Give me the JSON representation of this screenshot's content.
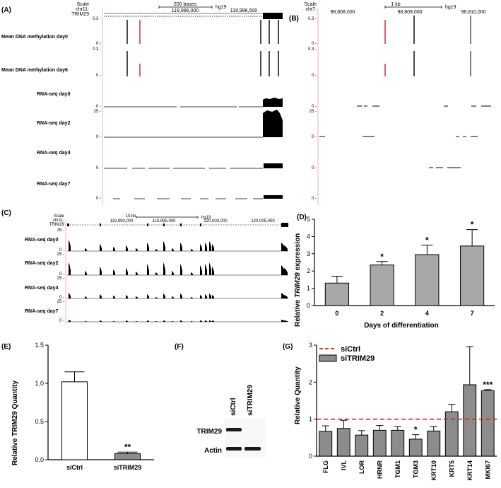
{
  "panels": {
    "A": {
      "label": "(A)",
      "scale_label": "Scale",
      "scale_bar": "200 bases",
      "assembly": "hg19",
      "chrom": "chr11:",
      "gene": "TRIM29",
      "coords": [
        "119,996,000",
        "119,996,500"
      ],
      "tracks": [
        "Mean DNA methylation day0",
        "Mean DNA methylation day6",
        "RNA-seq day0",
        "RNA-seq day2",
        "RNA-seq day4",
        "RNA-seq day7"
      ],
      "ticks_meth": [
        "0.3 -",
        "0 -"
      ],
      "ticks_rna": [
        "25 -",
        "0 -"
      ]
    },
    "B": {
      "label": "(B)",
      "scale_label": "Scale",
      "scale_bar": "1 kb",
      "assembly": "hg19",
      "chrom": "chr7:",
      "coords": [
        "98,808,000",
        "98,809,000",
        "98,810,000"
      ],
      "ticks_meth": [
        "0.3 -",
        "0 -"
      ],
      "ticks_rna": [
        "25 -",
        "0 -"
      ]
    },
    "C": {
      "label": "(C)",
      "scale_label": "Scale",
      "chrom": "chr11:",
      "gene": "TRIM29",
      "scale_bar": "10 kb",
      "assembly": "hg19",
      "coords": [
        "119,990,000",
        "119,995,000",
        "120,000,000",
        "120,005,000"
      ],
      "tracks": [
        "RNA-seq day0",
        "RNA-seq day2",
        "RNA-seq day4",
        "RNA-seq day7"
      ],
      "ticks": [
        "25 -",
        "0 -"
      ]
    },
    "D": {
      "label": "(D)"
    },
    "E": {
      "label": "(E)"
    },
    "F": {
      "label": "(F)",
      "lanes": [
        "siCtrl",
        "siTRIM29"
      ],
      "rows": [
        "TRIM29",
        "Actin"
      ]
    },
    "G": {
      "label": "(G)"
    }
  },
  "chart_data": [
    {
      "id": "D",
      "type": "bar",
      "categories": [
        "0",
        "2",
        "4",
        "7"
      ],
      "values": [
        1.3,
        2.35,
        2.95,
        3.45
      ],
      "errors": [
        0.4,
        0.2,
        0.55,
        0.95
      ],
      "significance": [
        "",
        "*",
        "*",
        "*"
      ],
      "xlabel": "Days of differentiation",
      "ylabel_pre": "Relative ",
      "ylabel_italic": "TRIM29",
      "ylabel_post": " expression",
      "ylim": [
        0,
        5
      ],
      "yticks": [
        0,
        1,
        2,
        3,
        4,
        5
      ],
      "bar_color": "#a8a8a8"
    },
    {
      "id": "E",
      "type": "bar",
      "categories": [
        "siCtrl",
        "siTRIM29"
      ],
      "values": [
        1.02,
        0.08
      ],
      "errors": [
        0.13,
        0.02
      ],
      "significance": [
        "",
        "**"
      ],
      "ylabel": "Relative TRIM29 Quantity",
      "ylim": [
        0,
        1.5
      ],
      "yticks": [
        "0.0",
        "0.5",
        "1.0",
        "1.5"
      ],
      "bar_colors": [
        "#ffffff",
        "#8c8c8c"
      ]
    },
    {
      "id": "G",
      "type": "bar",
      "categories": [
        "FLG",
        "IVL",
        "LOR",
        "HRNR",
        "TGM1",
        "TGM3",
        "KRT10",
        "KRT5",
        "KRT14",
        "MKI67"
      ],
      "values": [
        0.67,
        0.75,
        0.57,
        0.7,
        0.7,
        0.46,
        0.68,
        1.2,
        1.93,
        1.77
      ],
      "errors": [
        0.15,
        0.22,
        0.12,
        0.13,
        0.1,
        0.12,
        0.12,
        0.2,
        1.03,
        0.03
      ],
      "significance": [
        "",
        "",
        "",
        "",
        "",
        "*",
        "",
        "",
        "",
        "***"
      ],
      "ylabel": "Relative Quantity",
      "ylim": [
        0,
        3
      ],
      "yticks": [
        0,
        1,
        2,
        3
      ],
      "reference_line": 1,
      "series": [
        {
          "name": "siCtrl",
          "color": "#e02020"
        },
        {
          "name": "siTRIM29",
          "color": "#8c8c8c"
        }
      ],
      "legend": "top-left"
    }
  ]
}
